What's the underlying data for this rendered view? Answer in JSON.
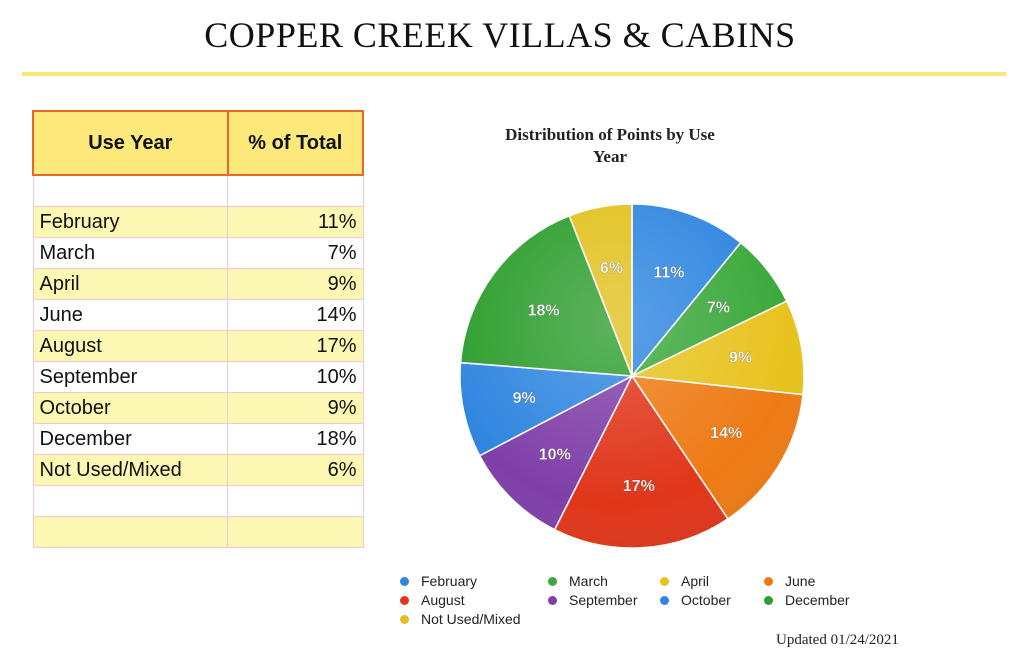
{
  "page": {
    "title": "COPPER CREEK VILLAS & CABINS",
    "updated": "Updated 01/24/2021"
  },
  "table": {
    "headers": [
      "Use Year",
      "% of Total"
    ],
    "rows": [
      {
        "month": "",
        "pct": ""
      },
      {
        "month": "February",
        "pct": "11%"
      },
      {
        "month": "March",
        "pct": "7%"
      },
      {
        "month": "April",
        "pct": "9%"
      },
      {
        "month": "June",
        "pct": "14%"
      },
      {
        "month": "August",
        "pct": "17%"
      },
      {
        "month": "September",
        "pct": "10%"
      },
      {
        "month": "October",
        "pct": "9%"
      },
      {
        "month": "December",
        "pct": "18%"
      },
      {
        "month": "Not Used/Mixed",
        "pct": "6%"
      },
      {
        "month": "",
        "pct": ""
      },
      {
        "month": "",
        "pct": ""
      }
    ]
  },
  "chart_data": {
    "type": "pie",
    "title": "Distribution of Points by Use Year",
    "title_lines": [
      "Distribution of Points by Use",
      "Year"
    ],
    "labels": [
      "February",
      "March",
      "April",
      "June",
      "August",
      "September",
      "October",
      "December",
      "Not Used/Mixed"
    ],
    "values": [
      11,
      7,
      9,
      14,
      17,
      10,
      9,
      18,
      6
    ],
    "value_labels": [
      "11%",
      "7%",
      "9%",
      "14%",
      "17%",
      "10%",
      "9%",
      "18%",
      "6%"
    ],
    "colors": [
      "#2f86e0",
      "#3aa83a",
      "#e8c21e",
      "#ee7a14",
      "#e0361a",
      "#7f3fa8",
      "#2f86e0",
      "#2e9e2e",
      "#e2c11f"
    ],
    "legend_placement": "bottom"
  }
}
